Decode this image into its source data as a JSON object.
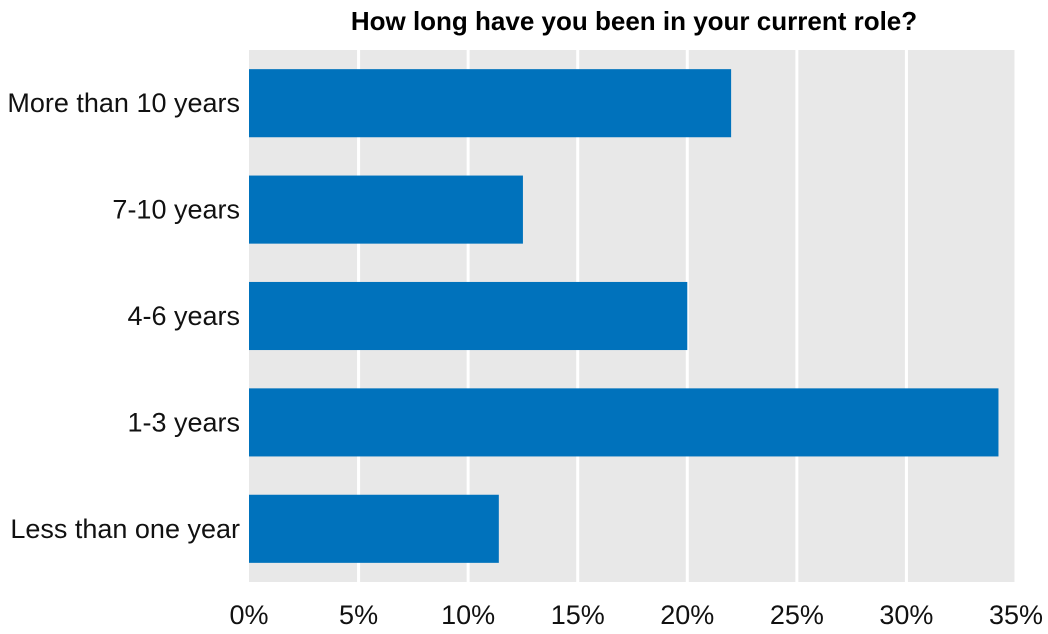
{
  "chart_data": {
    "type": "bar",
    "orientation": "horizontal",
    "title": "How long have you been in your current role?",
    "categories": [
      "More than 10 years",
      "7-10 years",
      "4-6 years",
      "1-3 years",
      "Less than one year"
    ],
    "values": [
      22.0,
      12.5,
      20.0,
      34.2,
      11.4
    ],
    "unit": "%",
    "xlim": [
      0,
      35
    ],
    "xticks": [
      0,
      5,
      10,
      15,
      20,
      25,
      30,
      35
    ],
    "xtick_labels": [
      "0%",
      "5%",
      "10%",
      "15%",
      "20%",
      "25%",
      "30%",
      "35%"
    ],
    "grid": true,
    "legend": "none",
    "colors": {
      "bar": "#0072bc",
      "plot_background": "#e8e8e8",
      "gridline": "#ffffff"
    }
  }
}
